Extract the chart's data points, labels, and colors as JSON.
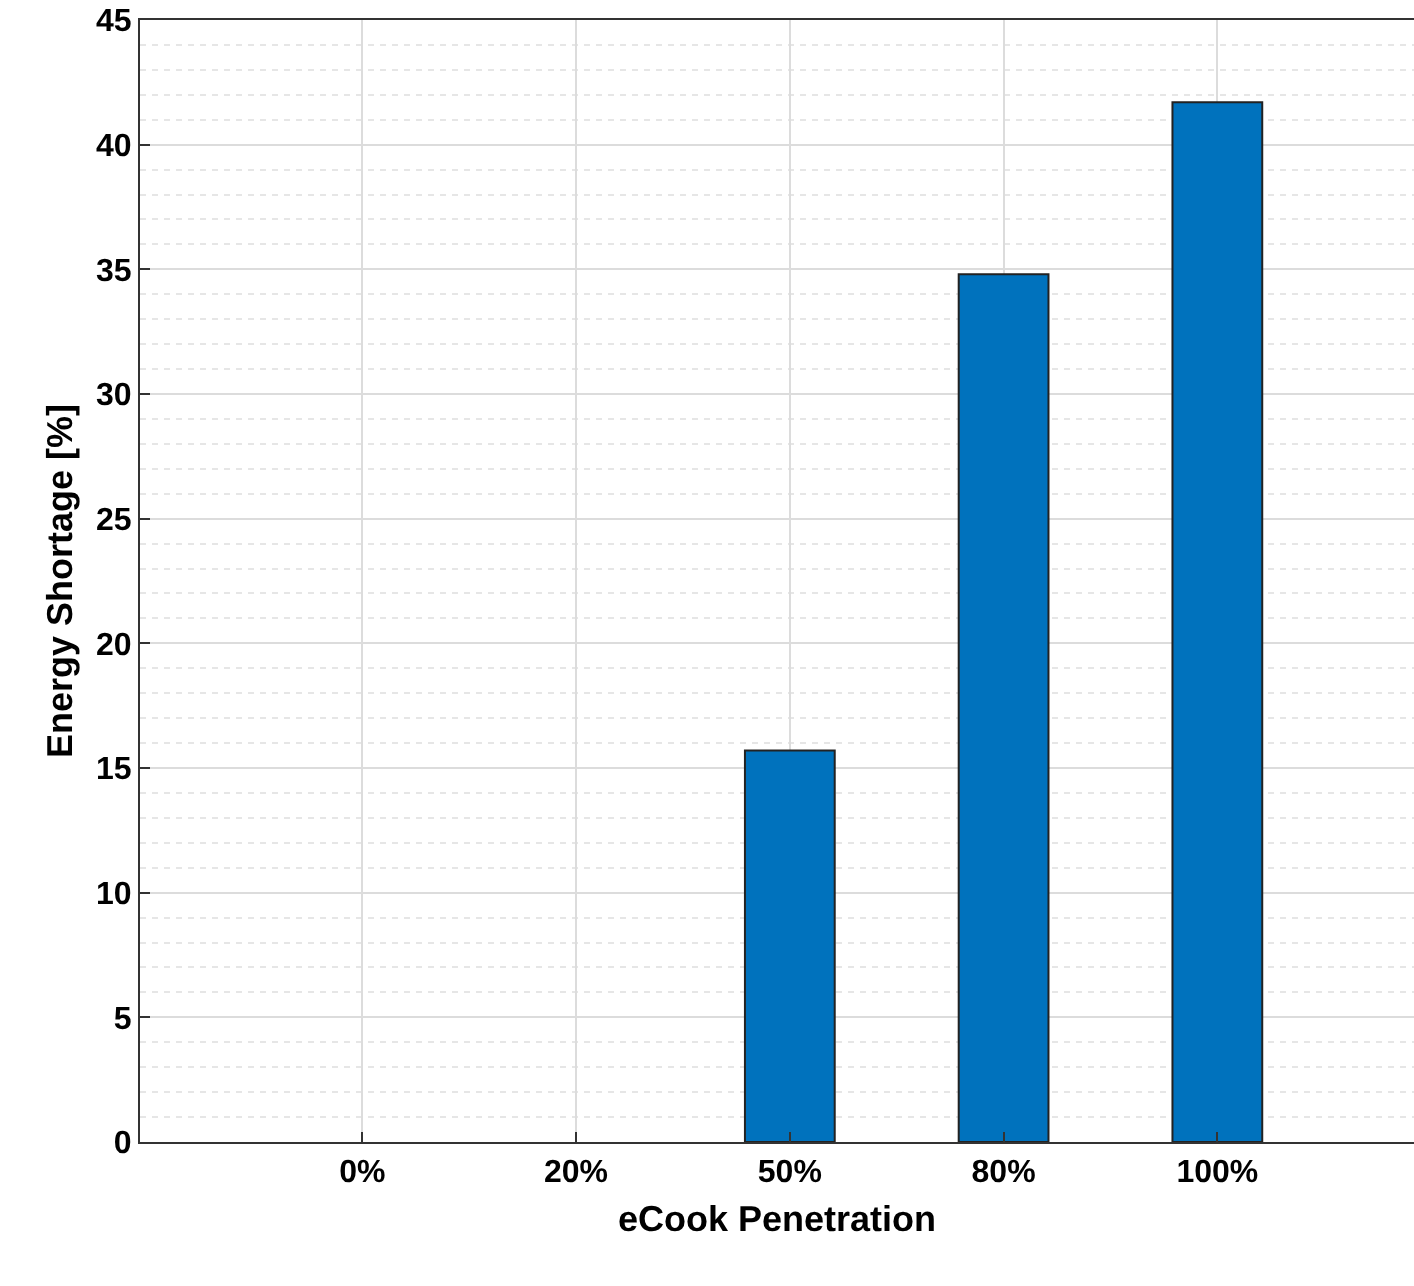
{
  "chart_data": {
    "type": "bar",
    "xlabel": "eCook Penetration",
    "ylabel": "Energy Shortage [%]",
    "categories": [
      "0%",
      "20%",
      "50%",
      "80%",
      "100%"
    ],
    "values": [
      0,
      0,
      15.7,
      34.8,
      41.7
    ],
    "color": "#0072bd",
    "ylim": [
      0,
      45
    ],
    "yticks": [
      0,
      5,
      10,
      15,
      20,
      25,
      30,
      35,
      40,
      45
    ],
    "grid": true
  }
}
